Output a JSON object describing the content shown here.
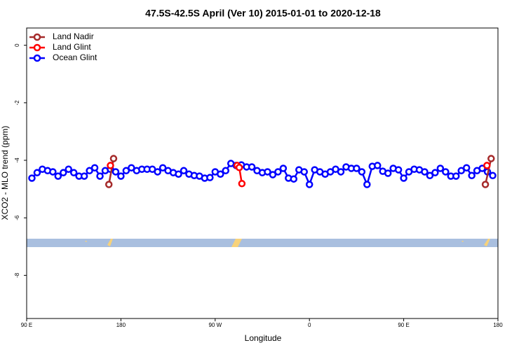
{
  "chart_data": {
    "type": "line",
    "title": "47.5S-42.5S April (Ver 10)   2015-01-01 to 2020-12-18",
    "xlabel": "Longitude",
    "ylabel": "XCO2 - MLO trend (ppm)",
    "xlim": [
      90,
      540
    ],
    "ylim": [
      -9.5,
      0.6
    ],
    "xticks": [
      {
        "value": 90,
        "label": "90 E"
      },
      180,
      {
        "value": 270,
        "label": "90 W"
      },
      {
        "value": 360,
        "label": "0"
      },
      {
        "value": 450,
        "label": "90 E"
      },
      {
        "value": 540,
        "label": "180"
      }
    ],
    "yticks": [
      0,
      -2,
      -4,
      -6,
      -8
    ],
    "legend": "top-left",
    "series": [
      {
        "name": "Land Nadir",
        "color": "#a52a2a",
        "x": [
          168.5,
          173,
          null,
          528,
          533.5
        ],
        "values": [
          -4.84,
          -3.94,
          null,
          -4.84,
          -3.94
        ]
      },
      {
        "name": "Land Glint",
        "color": "#ff0000",
        "x": [
          170,
          null,
          291,
          293,
          295.5,
          null,
          529.5
        ],
        "values": [
          -4.18,
          null,
          -4.18,
          -4.25,
          -4.81,
          null,
          -4.18
        ]
      },
      {
        "name": "Ocean Glint",
        "color": "#0000ff",
        "x": [
          95,
          100,
          105,
          110,
          115,
          120,
          125,
          130,
          135,
          140,
          145,
          150,
          155,
          160,
          165,
          170,
          175,
          180,
          185,
          190,
          195,
          200,
          205,
          210,
          215,
          220,
          225,
          230,
          235,
          240,
          245,
          250,
          255,
          260,
          265,
          270,
          275,
          280,
          285,
          290,
          295,
          300,
          305,
          310,
          315,
          320,
          325,
          330,
          335,
          340,
          345,
          350,
          355,
          360,
          365,
          370,
          375,
          380,
          385,
          390,
          395,
          400,
          405,
          410,
          415,
          420,
          425,
          430,
          435,
          440,
          445,
          450,
          455,
          460,
          465,
          470,
          475,
          480,
          485,
          490,
          495,
          500,
          505,
          510,
          515,
          520,
          525,
          530,
          535
        ],
        "values": [
          -4.62,
          -4.43,
          -4.31,
          -4.36,
          -4.4,
          -4.55,
          -4.43,
          -4.31,
          -4.43,
          -4.55,
          -4.55,
          -4.36,
          -4.26,
          -4.55,
          -4.36,
          -4.31,
          -4.4,
          -4.55,
          -4.36,
          -4.26,
          -4.36,
          -4.31,
          -4.31,
          -4.31,
          -4.4,
          -4.26,
          -4.36,
          -4.43,
          -4.48,
          -4.36,
          -4.48,
          -4.53,
          -4.55,
          -4.62,
          -4.6,
          -4.4,
          -4.48,
          -4.36,
          -4.11,
          -4.18,
          -4.16,
          -4.23,
          -4.23,
          -4.36,
          -4.43,
          -4.4,
          -4.5,
          -4.4,
          -4.28,
          -4.62,
          -4.65,
          -4.33,
          -4.4,
          -4.84,
          -4.33,
          -4.4,
          -4.48,
          -4.4,
          -4.31,
          -4.4,
          -4.23,
          -4.28,
          -4.28,
          -4.4,
          -4.84,
          -4.21,
          -4.18,
          -4.38,
          -4.45,
          -4.28,
          -4.33,
          -4.62,
          -4.4,
          -4.31,
          -4.33,
          -4.4,
          -4.53,
          -4.43,
          -4.28,
          -4.4,
          -4.55,
          -4.55,
          -4.36,
          -4.26,
          -4.53,
          -4.36,
          -4.28,
          -4.4,
          -4.53
        ]
      }
    ]
  }
}
